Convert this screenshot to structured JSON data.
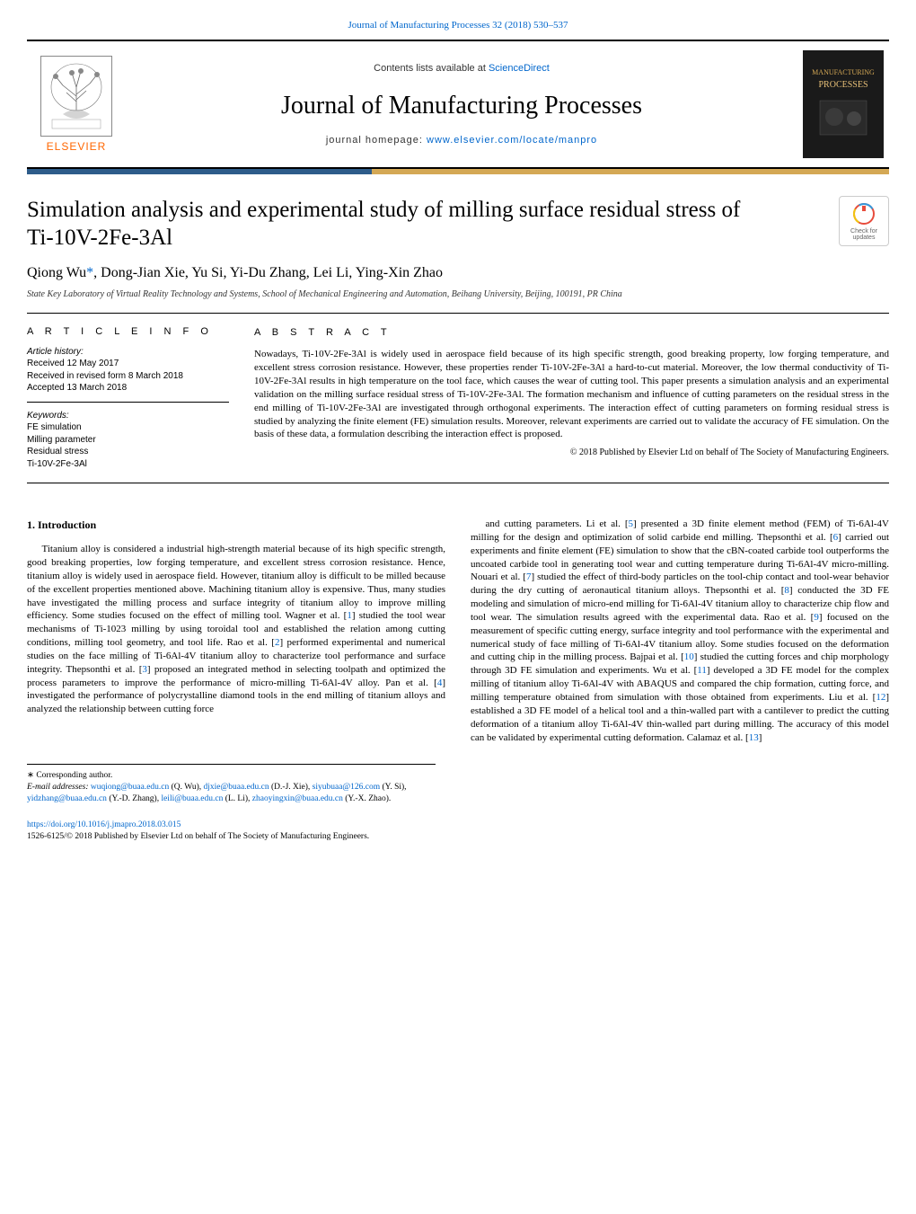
{
  "topline": "Journal of Manufacturing Processes 32 (2018) 530–537",
  "masthead": {
    "contents_prefix": "Contents lists available at ",
    "contents_link": "ScienceDirect",
    "journal_name": "Journal of Manufacturing Processes",
    "homepage_prefix": "journal homepage: ",
    "homepage_link": "www.elsevier.com/locate/manpro",
    "elsevier_label": "ELSEVIER",
    "cover_line1": "MANUFACTURING",
    "cover_line2": "PROCESSES"
  },
  "title": "Simulation analysis and experimental study of milling surface residual stress of Ti-10V-2Fe-3Al",
  "check_updates_label": "Check for updates",
  "authors_html": "Qiong Wu",
  "authors_rest": ", Dong-Jian Xie, Yu Si, Yi-Du Zhang, Lei Li, Ying-Xin Zhao",
  "affiliation": "State Key Laboratory of Virtual Reality Technology and Systems, School of Mechanical Engineering and Automation, Beihang University, Beijing, 100191, PR China",
  "article_info": {
    "heading": "A R T I C L E   I N F O",
    "history_label": "Article history:",
    "received": "Received 12 May 2017",
    "revised": "Received in revised form 8 March 2018",
    "accepted": "Accepted 13 March 2018",
    "keywords_label": "Keywords:",
    "keywords": [
      "FE simulation",
      "Milling parameter",
      "Residual stress",
      "Ti-10V-2Fe-3Al"
    ]
  },
  "abstract": {
    "heading": "A B S T R A C T",
    "text": "Nowadays, Ti-10V-2Fe-3Al is widely used in aerospace field because of its high specific strength, good breaking property, low forging temperature, and excellent stress corrosion resistance. However, these properties render Ti-10V-2Fe-3Al a hard-to-cut material. Moreover, the low thermal conductivity of Ti-10V-2Fe-3Al results in high temperature on the tool face, which causes the wear of cutting tool. This paper presents a simulation analysis and an experimental validation on the milling surface residual stress of Ti-10V-2Fe-3Al. The formation mechanism and influence of cutting parameters on the residual stress in the end milling of Ti-10V-2Fe-3Al are investigated through orthogonal experiments. The interaction effect of cutting parameters on forming residual stress is studied by analyzing the finite element (FE) simulation results. Moreover, relevant experiments are carried out to validate the accuracy of FE simulation. On the basis of these data, a formulation describing the interaction effect is proposed.",
    "copyright": "© 2018 Published by Elsevier Ltd on behalf of The Society of Manufacturing Engineers."
  },
  "section1": {
    "heading": "1.  Introduction",
    "col1": "Titanium alloy is considered a industrial high-strength material because of its high specific strength, good breaking properties, low forging temperature, and excellent stress corrosion resistance. Hence, titanium alloy is widely used in aerospace field. However, titanium alloy is difficult to be milled because of the excellent properties mentioned above. Machining titanium alloy is expensive. Thus, many studies have investigated the milling process and surface integrity of titanium alloy to improve milling efficiency. Some studies focused on the effect of milling tool. Wagner et al. [1] studied the tool wear mechanisms of Ti-1023 milling by using toroidal tool and established the relation among cutting conditions, milling tool geometry, and tool life. Rao et al. [2] performed experimental and numerical studies on the face milling of Ti-6Al-4V titanium alloy to characterize tool performance and surface integrity. Thepsonthi et al. [3] proposed an integrated method in selecting toolpath and optimized the process parameters to improve the performance of micro-milling Ti-6Al-4V alloy. Pan et al. [4] investigated the performance of polycrystalline diamond tools in the end milling of titanium alloys and analyzed the relationship between cutting force",
    "col2": "and cutting parameters. Li et al. [5] presented a 3D finite element method (FEM) of Ti-6Al-4V milling for the design and optimization of solid carbide end milling. Thepsonthi et al. [6] carried out experiments and finite element (FE) simulation to show that the cBN-coated carbide tool outperforms the uncoated carbide tool in generating tool wear and cutting temperature during Ti-6Al-4V micro-milling. Nouari et al. [7] studied the effect of third-body particles on the tool-chip contact and tool-wear behavior during the dry cutting of aeronautical titanium alloys. Thepsonthi et al. [8] conducted the 3D FE modeling and simulation of micro-end milling for Ti-6Al-4V titanium alloy to characterize chip flow and tool wear. The simulation results agreed with the experimental data. Rao et al. [9] focused on the measurement of specific cutting energy, surface integrity and tool performance with the experimental and numerical study of face milling of Ti-6Al-4V titanium alloy. Some studies focused on the deformation and cutting chip in the milling process. Bajpai et al. [10] studied the cutting forces and chip morphology through 3D FE simulation and experiments. Wu et al. [11] developed a 3D FE model for the complex milling of titanium alloy Ti-6Al-4V with ABAQUS and compared the chip formation, cutting force, and milling temperature obtained from simulation with those obtained from experiments. Liu et al. [12] established a 3D FE model of a helical tool and a thin-walled part with a cantilever to predict the cutting deformation of a titanium alloy Ti-6Al-4V thin-walled part during milling. The accuracy of this model can be validated by experimental cutting deformation. Calamaz et al. [13]"
  },
  "refs": [
    "1",
    "2",
    "3",
    "4",
    "5",
    "6",
    "7",
    "8",
    "9",
    "10",
    "11",
    "12",
    "13"
  ],
  "footnotes": {
    "corr": "Corresponding author.",
    "emails_label": "E-mail addresses: ",
    "emails": [
      {
        "addr": "wuqiong@buaa.edu.cn",
        "who": "(Q. Wu)"
      },
      {
        "addr": "djxie@buaa.edu.cn",
        "who": "(D.-J. Xie)"
      },
      {
        "addr": "siyubuaa@126.com",
        "who": "(Y. Si)"
      },
      {
        "addr": "yidzhang@buaa.edu.cn",
        "who": "(Y.-D. Zhang)"
      },
      {
        "addr": "leili@buaa.edu.cn",
        "who": "(L. Li)"
      },
      {
        "addr": "zhaoyingxin@buaa.edu.cn",
        "who": "(Y.-X. Zhao)"
      }
    ]
  },
  "doi": {
    "link": "https://doi.org/10.1016/j.jmapro.2018.03.015",
    "issn_line": "1526-6125/© 2018 Published by Elsevier Ltd on behalf of The Society of Manufacturing Engineers."
  },
  "colors": {
    "link": "#0066cc",
    "elsevier_orange": "#ff6600",
    "bar_blue": "#2e5c8a",
    "bar_gold": "#d4a855",
    "cover_bg": "#1a1a1a"
  }
}
